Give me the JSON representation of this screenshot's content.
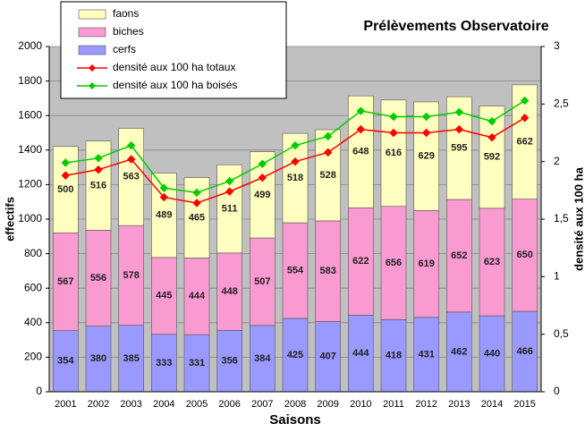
{
  "chart_data": {
    "type": "bar",
    "stacked": true,
    "title": "Prélèvements Observatoire",
    "x_label": "Saisons",
    "y_label": "effectifs",
    "y2_label": "densité aux 100 ha",
    "categories": [
      "2001",
      "2002",
      "2003",
      "2004",
      "2005",
      "2006",
      "2007",
      "2008",
      "2009",
      "2010",
      "2011",
      "2012",
      "2013",
      "2014",
      "2015"
    ],
    "series": [
      {
        "name": "faons",
        "color": "#ffffc0",
        "type": "bar",
        "values": [
          500,
          516,
          563,
          489,
          465,
          511,
          499,
          518,
          528,
          648,
          616,
          629,
          595,
          592,
          662
        ]
      },
      {
        "name": "biches",
        "color": "#f99ad0",
        "type": "bar",
        "values": [
          567,
          556,
          578,
          445,
          444,
          448,
          507,
          554,
          583,
          622,
          656,
          619,
          652,
          623,
          650
        ]
      },
      {
        "name": "cerfs",
        "color": "#9999ff",
        "type": "bar",
        "values": [
          354,
          380,
          385,
          333,
          331,
          356,
          384,
          425,
          407,
          444,
          418,
          431,
          462,
          440,
          466
        ]
      },
      {
        "name": "densité aux 100 ha totaux",
        "color": "#ff0000",
        "type": "line",
        "axis": "y2",
        "values": [
          1.88,
          1.93,
          2.02,
          1.69,
          1.64,
          1.74,
          1.86,
          2.0,
          2.08,
          2.28,
          2.25,
          2.25,
          2.28,
          2.21,
          2.38
        ]
      },
      {
        "name": "densité aux 100 ha boisés",
        "color": "#00cc00",
        "type": "line",
        "axis": "y2",
        "values": [
          1.99,
          2.03,
          2.14,
          1.77,
          1.73,
          1.83,
          1.98,
          2.14,
          2.22,
          2.44,
          2.39,
          2.39,
          2.43,
          2.35,
          2.53
        ]
      }
    ],
    "ylim": [
      0,
      2000
    ],
    "yticks": [
      0,
      200,
      400,
      600,
      800,
      1000,
      1200,
      1400,
      1600,
      1800,
      2000
    ],
    "y2lim": [
      0,
      3
    ],
    "y2ticks": [
      0,
      {
        "value": 0.5,
        "label": "0,5"
      },
      1,
      {
        "value": 1.5,
        "label": "1,5"
      },
      2,
      {
        "value": 2.5,
        "label": "2,5"
      },
      3
    ],
    "grid": true,
    "plot_background": "#c0c0c0",
    "legend_position": "top-left"
  }
}
